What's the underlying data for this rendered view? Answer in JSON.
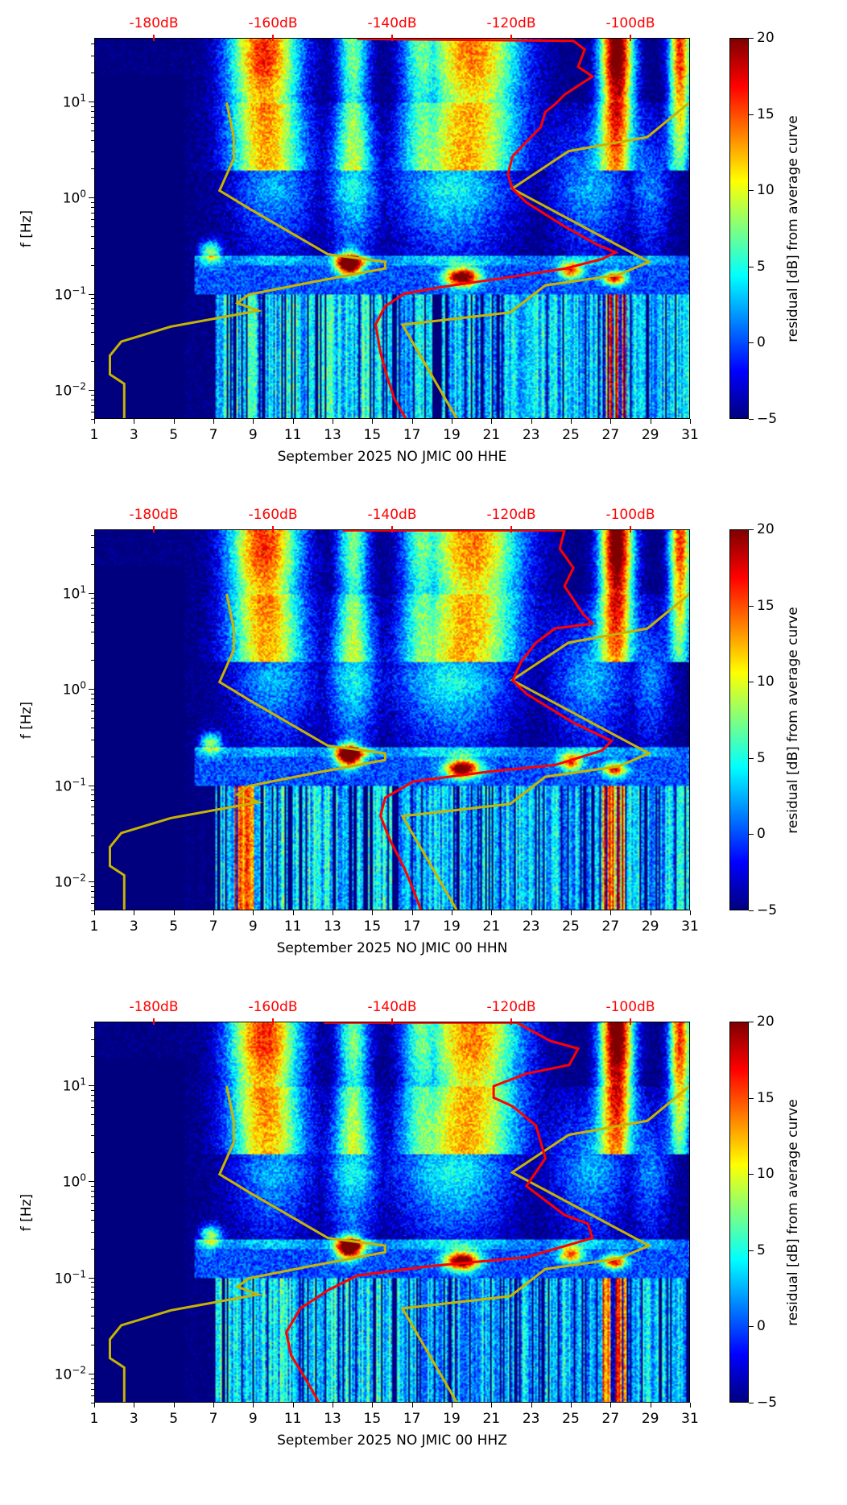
{
  "chart_data": {
    "type": "heatmap",
    "description_axes": {
      "x": "day of month",
      "y": "frequency [Hz] (log)",
      "color": "residual [dB] from average curve",
      "top_axis": "PSD level [dB]"
    },
    "xlim": [
      1,
      31
    ],
    "ylim_hz": [
      0.005,
      46
    ],
    "top_xlim_db": [
      -190,
      -90
    ],
    "clim": [
      -5,
      20
    ],
    "x_ticks": [
      "1",
      "3",
      "5",
      "7",
      "9",
      "11",
      "13",
      "15",
      "17",
      "19",
      "21",
      "23",
      "25",
      "27",
      "29",
      "31"
    ],
    "y_ticks": {
      "base": "10",
      "exponents": [
        "1",
        "0",
        "−1",
        "−2"
      ]
    },
    "top_ticks": [
      "-180dB",
      "-160dB",
      "-140dB",
      "-120dB",
      "-100dB"
    ],
    "top_tick_values": [
      -180,
      -160,
      -140,
      -120,
      -100
    ],
    "colorbar_ticks": [
      "20",
      "15",
      "10",
      "5",
      "0",
      "−5"
    ],
    "colorbar_values": [
      20,
      15,
      10,
      5,
      0,
      -5
    ],
    "colorbar_label": "residual [dB] from average curve",
    "ylabel": "f [Hz]",
    "colors": {
      "median_psd": "#ff0000",
      "noise_models": "#c8b400"
    },
    "noise_model_low": {
      "db": [
        -167.9,
        -166.7,
        -166.7,
        -169.1,
        -163.9,
        -150.9,
        -141.3,
        -141.3,
        -153.9,
        -164.2,
        -166.1,
        -162.6,
        -177.3,
        -185.6,
        -187.5,
        -187.5,
        -185.1,
        -185.1
      ],
      "log10_hz": [
        1.0,
        0.639,
        0.415,
        0.083,
        -0.112,
        -0.58,
        -0.659,
        -0.727,
        -0.873,
        -1.0,
        -1.088,
        -1.166,
        -1.332,
        -1.488,
        -1.634,
        -1.829,
        -1.927,
        -2.288
      ]
    },
    "noise_model_high": {
      "db": [
        -129.3,
        -138.4,
        -120.3,
        -114.4,
        -102.2,
        -97.0,
        -120.0,
        -110.5,
        -97.3,
        -90.2
      ],
      "log10_hz": [
        -2.288,
        -1.312,
        -1.185,
        -0.902,
        -0.795,
        -0.659,
        0.102,
        0.493,
        0.639,
        1.0
      ]
    },
    "panels": [
      {
        "xlabel": "September 2025 NO JMIC 00 HHE",
        "median_psd": {
          "db": [
            -146.0,
            -109.7,
            -107.8,
            -108.9,
            -106.5,
            -111.2,
            -112.8,
            -114.4,
            -115.2,
            -117.6,
            -119.9,
            -120.7,
            -119.9,
            -117.6,
            -111.2,
            -105.7,
            -102.6,
            -104.9,
            -111.2,
            -120.7,
            -131.8,
            -138.1,
            -141.3,
            -142.9,
            -142.1,
            -141.0,
            -139.7,
            -137.8
          ],
          "log10_hz": [
            1.66,
            1.64,
            1.55,
            1.37,
            1.27,
            1.08,
            0.98,
            0.9,
            0.74,
            0.59,
            0.44,
            0.25,
            0.1,
            -0.04,
            -0.29,
            -0.48,
            -0.56,
            -0.63,
            -0.73,
            -0.82,
            -0.92,
            -0.99,
            -1.12,
            -1.31,
            -1.6,
            -1.85,
            -2.09,
            -2.29
          ]
        }
      },
      {
        "xlabel": "September 2025 NO JMIC 00 HHN",
        "median_psd": {
          "db": [
            -148.4,
            -111.2,
            -112.0,
            -109.7,
            -111.2,
            -108.1,
            -106.5,
            -112.8,
            -116.0,
            -118.4,
            -119.9,
            -117.6,
            -109.7,
            -103.3,
            -104.9,
            -112.8,
            -123.9,
            -136.5,
            -141.3,
            -142.1,
            -140.5,
            -138.1,
            -136.5,
            -135.3
          ],
          "log10_hz": [
            1.66,
            1.66,
            1.47,
            1.27,
            1.08,
            0.79,
            0.69,
            0.64,
            0.49,
            0.3,
            0.1,
            -0.04,
            -0.34,
            -0.53,
            -0.63,
            -0.78,
            -0.85,
            -0.95,
            -1.12,
            -1.31,
            -1.56,
            -1.85,
            -2.09,
            -2.29
          ]
        }
      },
      {
        "xlabel": "September 2025 NO JMIC 00 HHZ",
        "median_psd": {
          "db": [
            -151.6,
            -119.2,
            -113.6,
            -108.9,
            -110.4,
            -117.6,
            -123.1,
            -123.1,
            -119.9,
            -116.0,
            -114.4,
            -117.6,
            -111.2,
            -107.3,
            -106.5,
            -117.6,
            -133.4,
            -146.0,
            -150.8,
            -155.5,
            -157.9,
            -157.1,
            -154.7,
            -152.4
          ],
          "log10_hz": [
            1.66,
            1.66,
            1.47,
            1.39,
            1.22,
            1.13,
            1.0,
            0.88,
            0.79,
            0.59,
            0.25,
            -0.04,
            -0.34,
            -0.43,
            -0.58,
            -0.78,
            -0.87,
            -0.97,
            -1.12,
            -1.31,
            -1.56,
            -1.8,
            -2.04,
            -2.29
          ]
        }
      }
    ]
  }
}
